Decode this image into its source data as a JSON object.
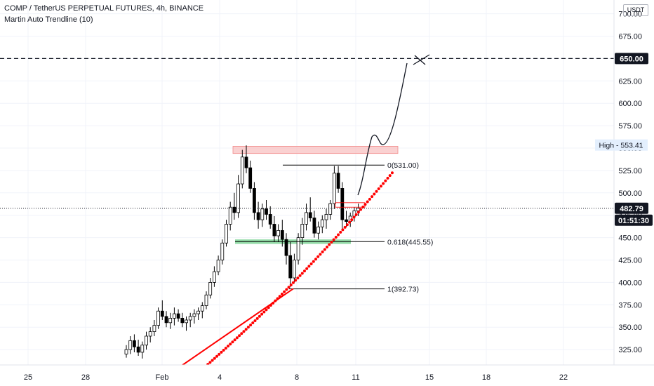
{
  "header": {
    "title": "COMP / TetherUS PERPETUAL FUTURES, 4h, BINANCE",
    "indicator": "Martin Auto Trendline (10)",
    "currency": "USDT"
  },
  "chart_data": {
    "type": "candlestick",
    "ylim": [
      300,
      725
    ],
    "y_ticks": [
      "700.00",
      "675.00",
      "650.00",
      "625.00",
      "600.00",
      "575.00",
      "550.00",
      "525.00",
      "500.00",
      "475.00",
      "450.00",
      "425.00",
      "400.00",
      "375.00",
      "350.00",
      "325.00"
    ],
    "x_ticks": [
      "25",
      "28",
      "Feb",
      "4",
      "8",
      "11",
      "15",
      "18",
      "22"
    ],
    "price_tags": {
      "target": "650.00",
      "current": "482.79",
      "countdown": "01:51:30",
      "high": "High - 553.41"
    },
    "fib_labels": [
      "0(531.00)",
      "0.618(445.55)",
      "1(392.73)"
    ],
    "colors": {
      "up": "#ffffff",
      "down": "#000000",
      "wick": "#000000",
      "trendline": "#ff0000",
      "resistance_zone": "#f7b9b9",
      "support_zone": "#7fd397",
      "current_tag": "#131722",
      "high_tag_bg": "#e3effd"
    },
    "candles": [
      [
        320,
        330,
        316,
        325
      ],
      [
        325,
        340,
        320,
        335
      ],
      [
        335,
        342,
        322,
        328
      ],
      [
        328,
        336,
        318,
        322
      ],
      [
        322,
        334,
        315,
        330
      ],
      [
        330,
        345,
        325,
        340
      ],
      [
        340,
        350,
        333,
        345
      ],
      [
        345,
        358,
        340,
        352
      ],
      [
        352,
        372,
        348,
        368
      ],
      [
        368,
        380,
        358,
        362
      ],
      [
        362,
        368,
        350,
        355
      ],
      [
        355,
        366,
        348,
        360
      ],
      [
        360,
        372,
        352,
        365
      ],
      [
        365,
        370,
        356,
        360
      ],
      [
        360,
        366,
        350,
        355
      ],
      [
        355,
        362,
        346,
        358
      ],
      [
        358,
        366,
        350,
        362
      ],
      [
        362,
        370,
        354,
        365
      ],
      [
        365,
        372,
        358,
        368
      ],
      [
        368,
        378,
        360,
        374
      ],
      [
        374,
        390,
        370,
        386
      ],
      [
        386,
        405,
        382,
        400
      ],
      [
        400,
        418,
        395,
        412
      ],
      [
        412,
        430,
        408,
        425
      ],
      [
        425,
        448,
        420,
        444
      ],
      [
        444,
        470,
        440,
        465
      ],
      [
        465,
        490,
        458,
        484
      ],
      [
        484,
        500,
        470,
        478
      ],
      [
        478,
        520,
        472,
        510
      ],
      [
        510,
        548,
        505,
        540
      ],
      [
        540,
        553,
        522,
        528
      ],
      [
        528,
        536,
        500,
        505
      ],
      [
        505,
        512,
        470,
        478
      ],
      [
        478,
        490,
        460,
        470
      ],
      [
        470,
        488,
        462,
        482
      ],
      [
        482,
        492,
        470,
        476
      ],
      [
        476,
        485,
        460,
        465
      ],
      [
        465,
        474,
        445,
        452
      ],
      [
        452,
        465,
        445,
        458
      ],
      [
        458,
        470,
        440,
        448
      ],
      [
        448,
        455,
        420,
        430
      ],
      [
        430,
        445,
        395,
        405
      ],
      [
        405,
        432,
        400,
        425
      ],
      [
        425,
        455,
        420,
        450
      ],
      [
        450,
        472,
        442,
        465
      ],
      [
        465,
        488,
        458,
        478
      ],
      [
        478,
        495,
        468,
        472
      ],
      [
        472,
        480,
        450,
        455
      ],
      [
        455,
        468,
        448,
        462
      ],
      [
        462,
        475,
        455,
        470
      ],
      [
        470,
        482,
        460,
        476
      ],
      [
        476,
        492,
        470,
        488
      ],
      [
        488,
        530,
        482,
        522
      ],
      [
        522,
        530,
        500,
        505
      ],
      [
        505,
        512,
        460,
        470
      ],
      [
        470,
        480,
        462,
        468
      ],
      [
        468,
        478,
        462,
        474
      ],
      [
        474,
        484,
        468,
        480
      ],
      [
        480,
        488,
        474,
        483
      ]
    ]
  }
}
